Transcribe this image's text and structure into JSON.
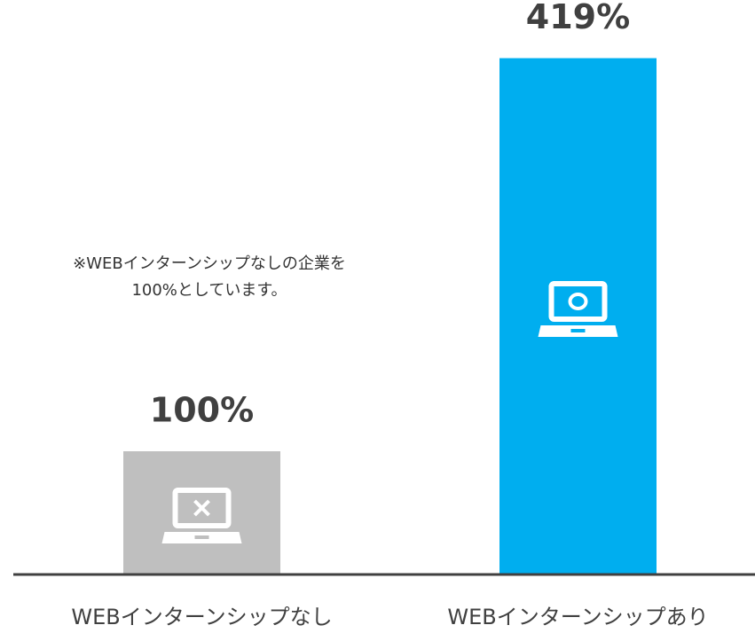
{
  "chart_data": {
    "type": "bar",
    "categories": [
      "WEBインターンシップなし",
      "WEBインターンシップあり"
    ],
    "values": [
      100,
      419
    ],
    "value_labels": [
      "100%",
      "419%"
    ],
    "colors": [
      "#bfbfbf",
      "#00aeef"
    ],
    "ylim": [
      0,
      450
    ],
    "annotation": [
      "※WEBインターンシップなしの企業を",
      "100%としています。"
    ]
  }
}
